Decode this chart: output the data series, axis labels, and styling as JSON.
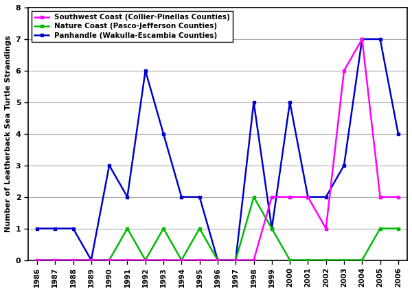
{
  "years": [
    1986,
    1987,
    1988,
    1989,
    1990,
    1991,
    1992,
    1993,
    1994,
    1995,
    1996,
    1997,
    1998,
    1999,
    2000,
    2001,
    2002,
    2003,
    2004,
    2005,
    2006
  ],
  "southwest_coast": [
    0,
    0,
    0,
    0,
    0,
    0,
    0,
    0,
    0,
    0,
    0,
    0,
    0,
    2,
    2,
    2,
    1,
    6,
    7,
    2,
    2
  ],
  "nature_coast": [
    0,
    0,
    0,
    0,
    0,
    1,
    0,
    1,
    0,
    1,
    0,
    0,
    2,
    1,
    0,
    0,
    0,
    0,
    0,
    1,
    1
  ],
  "panhandle": [
    1,
    1,
    1,
    0,
    3,
    2,
    6,
    4,
    2,
    2,
    0,
    0,
    5,
    1,
    5,
    2,
    2,
    3,
    7,
    7,
    4
  ],
  "southwest_label": "Southwest Coast (Collier-Pinellas Counties)",
  "nature_label": "Nature Coast (Pasco-Jefferson Counties)",
  "panhandle_label": "Panhandle (Wakulla-Escambia Counties)",
  "ylabel": "Number of Leatherback Sea Turtle Strandings",
  "ylim": [
    0,
    8
  ],
  "yticks": [
    0,
    1,
    2,
    3,
    4,
    5,
    6,
    7,
    8
  ],
  "southwest_color": "#FF00FF",
  "nature_color": "#00BB00",
  "panhandle_color": "#0000CC",
  "bg_color": "#FFFFFF",
  "grid_color": "#AAAAAA"
}
